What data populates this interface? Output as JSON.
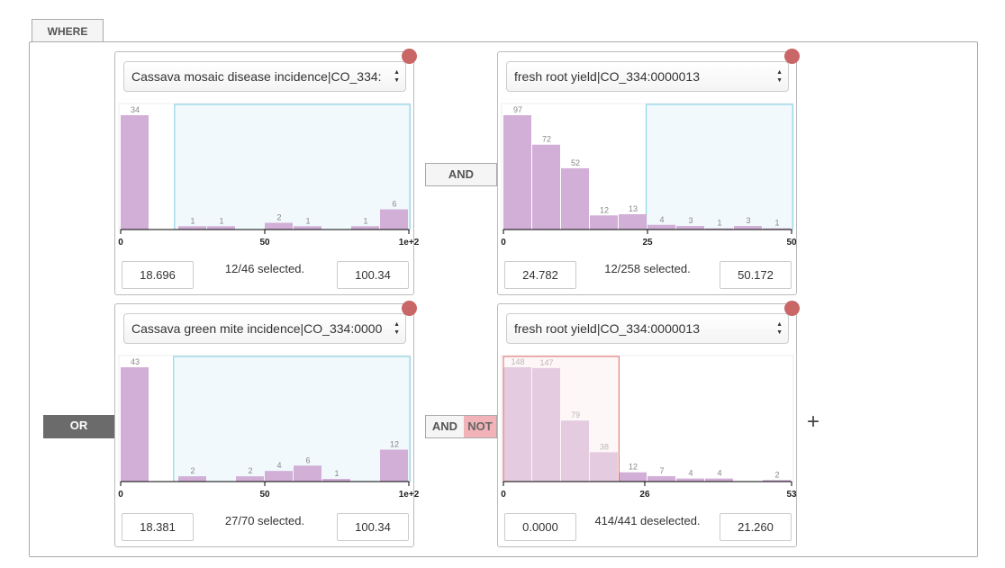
{
  "tab": "WHERE",
  "operators": {
    "and_1": "AND",
    "or": "OR",
    "and_2": "AND",
    "not": "NOT",
    "add": "+"
  },
  "bar_color": "#cda6d1",
  "panels": [
    {
      "attribute": "Cassava mosaic disease incidence|CO_334:",
      "bins": [
        0,
        10,
        20,
        30,
        40,
        50,
        60,
        70,
        80,
        90,
        100
      ],
      "counts": [
        34,
        0,
        1,
        1,
        0,
        2,
        1,
        0,
        1,
        6
      ],
      "xlim": [
        0,
        100
      ],
      "xticks": [
        0,
        50,
        {
          "value": 100,
          "label": "1e+2"
        }
      ],
      "range": [
        18.696,
        100.34
      ],
      "brush_color": "#7fcfe3",
      "brush_fill": "#f1f9fc",
      "status": "12/46 selected."
    },
    {
      "attribute": "fresh root yield|CO_334:0000013",
      "bins": [
        0,
        5,
        10,
        15,
        20,
        25,
        30,
        35,
        40,
        45,
        50
      ],
      "counts": [
        97,
        72,
        52,
        12,
        13,
        4,
        3,
        1,
        3,
        1
      ],
      "xlim": [
        0,
        50
      ],
      "xticks": [
        0,
        25,
        50
      ],
      "range": [
        24.782,
        50.172
      ],
      "brush_color": "#7fcfe3",
      "brush_fill": "#f1f9fc",
      "status": "12/258 selected."
    },
    {
      "attribute": "Cassava green mite incidence|CO_334:0000",
      "bins": [
        0,
        10,
        20,
        30,
        40,
        50,
        60,
        70,
        80,
        90,
        100
      ],
      "counts": [
        43,
        0,
        2,
        0,
        2,
        4,
        6,
        1,
        0,
        12
      ],
      "xlim": [
        0,
        100
      ],
      "xticks": [
        0,
        50,
        {
          "value": 100,
          "label": "1e+2"
        }
      ],
      "range": [
        18.381,
        100.34
      ],
      "brush_color": "#7fcfe3",
      "brush_fill": "#f1f9fc",
      "status": "27/70 selected."
    },
    {
      "attribute": "fresh root yield|CO_334:0000013",
      "bins": [
        0,
        5.3,
        10.6,
        15.9,
        21.2,
        26.5,
        31.8,
        37.1,
        42.4,
        47.7,
        53
      ],
      "counts": [
        148,
        147,
        79,
        38,
        12,
        7,
        4,
        4,
        0,
        2
      ],
      "xlim": [
        0,
        53
      ],
      "xticks": [
        0,
        26,
        53
      ],
      "range": [
        {
          "value": 0,
          "label": "0.0000"
        },
        {
          "value": 21.26,
          "label": "21.260"
        }
      ],
      "brush_color": "#e06b6b",
      "brush_fill": "#fbeeee",
      "status": "414/441 deselected."
    }
  ]
}
